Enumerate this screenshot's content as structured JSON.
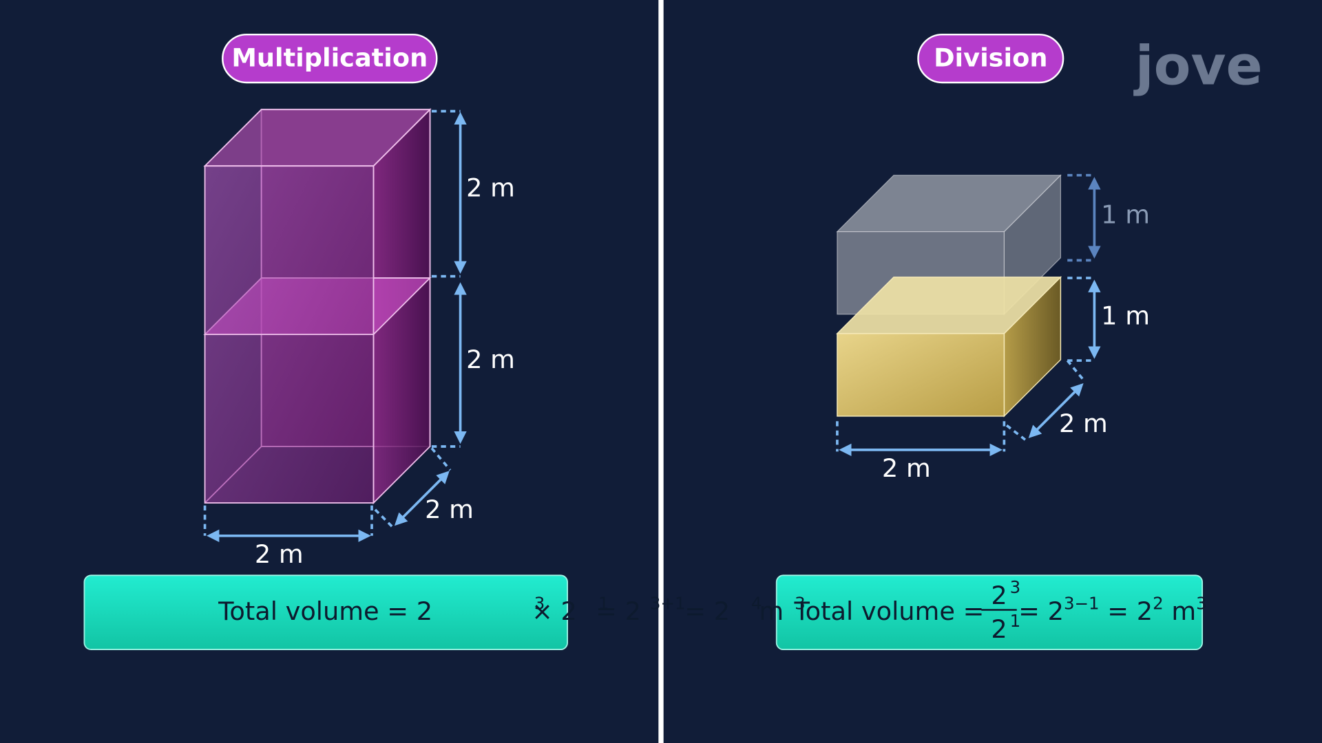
{
  "left": {
    "title": "Multiplication",
    "labels": [
      "2 m",
      "2 m",
      "2 m",
      "2 m"
    ],
    "formula": [
      "Total volume = 2",
      "3",
      " × 2",
      "1",
      " = 2",
      "3+1",
      "  = 2",
      "4",
      " m",
      "3"
    ]
  },
  "right": {
    "title": "Division",
    "labels": [
      "1 m",
      "1 m",
      "2 m",
      "2 m"
    ],
    "formula": {
      "prefix": "Total volume =",
      "numerator": [
        "2",
        "3"
      ],
      "denominator": [
        "2",
        "1"
      ],
      "rest": [
        " = 2",
        "3−1",
        " = 2",
        "2",
        " m",
        "3"
      ]
    }
  },
  "logo": "jove"
}
